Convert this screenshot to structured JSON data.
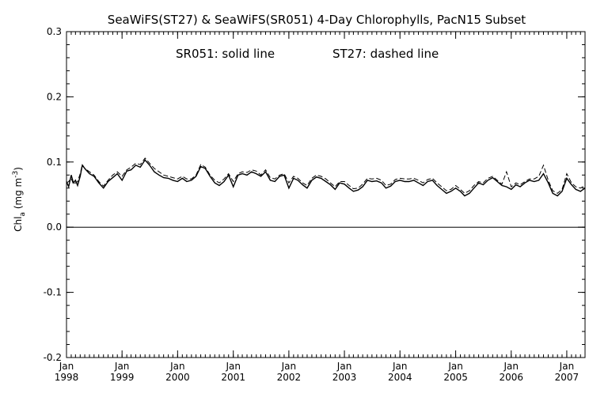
{
  "chart_data": {
    "type": "line",
    "title": "SeaWiFS(ST27) & SeaWiFS(SR051) 4-Day Chlorophylls, PacN15 Subset",
    "annotation_left": "SR051: solid line",
    "annotation_right": "ST27: dashed line",
    "ylabel": "Chl_a (mg m^-3)",
    "ylabel_parts": {
      "base": "Chl",
      "sub": "a",
      "mid": " (mg m",
      "sup": "-3",
      "end": ")"
    },
    "ylim": [
      -0.2,
      0.3
    ],
    "xlim": [
      "1998-01-01",
      "2007-05-01"
    ],
    "yticks": [
      "-0.2",
      "-0.1",
      "0.0",
      "0.1",
      "0.2",
      "0.3"
    ],
    "yticks_values": [
      -0.2,
      -0.1,
      0.0,
      0.1,
      0.2,
      0.3
    ],
    "xticks": [
      {
        "month": "Jan",
        "year": "1998",
        "date": "1998-01-01"
      },
      {
        "month": "Jan",
        "year": "1999",
        "date": "1999-01-01"
      },
      {
        "month": "Jan",
        "year": "2000",
        "date": "2000-01-01"
      },
      {
        "month": "Jan",
        "year": "2001",
        "date": "2001-01-01"
      },
      {
        "month": "Jan",
        "year": "2002",
        "date": "2002-01-01"
      },
      {
        "month": "Jan",
        "year": "2003",
        "date": "2003-01-01"
      },
      {
        "month": "Jan",
        "year": "2004",
        "date": "2004-01-01"
      },
      {
        "month": "Jan",
        "year": "2005",
        "date": "2005-01-01"
      },
      {
        "month": "Jan",
        "year": "2006",
        "date": "2006-01-01"
      },
      {
        "month": "Jan",
        "year": "2007",
        "date": "2007-01-01"
      }
    ],
    "zero_line": 0.0,
    "series": [
      {
        "name": "SR051",
        "style": "solid",
        "color": "#000000",
        "points": [
          [
            "1998-01-01",
            0.07
          ],
          [
            "1998-01-15",
            0.062
          ],
          [
            "1998-02-01",
            0.08
          ],
          [
            "1998-02-15",
            0.068
          ],
          [
            "1998-03-01",
            0.072
          ],
          [
            "1998-03-15",
            0.064
          ],
          [
            "1998-04-01",
            0.078
          ],
          [
            "1998-04-15",
            0.095
          ],
          [
            "1998-05-01",
            0.09
          ],
          [
            "1998-06-01",
            0.082
          ],
          [
            "1998-07-01",
            0.078
          ],
          [
            "1998-08-01",
            0.068
          ],
          [
            "1998-09-01",
            0.06
          ],
          [
            "1998-10-01",
            0.07
          ],
          [
            "1998-11-01",
            0.076
          ],
          [
            "1998-12-01",
            0.082
          ],
          [
            "1999-01-01",
            0.072
          ],
          [
            "1999-02-01",
            0.086
          ],
          [
            "1999-03-01",
            0.088
          ],
          [
            "1999-04-01",
            0.095
          ],
          [
            "1999-05-01",
            0.092
          ],
          [
            "1999-06-01",
            0.103
          ],
          [
            "1999-07-01",
            0.095
          ],
          [
            "1999-08-01",
            0.085
          ],
          [
            "1999-09-01",
            0.08
          ],
          [
            "1999-10-01",
            0.076
          ],
          [
            "1999-11-01",
            0.075
          ],
          [
            "1999-12-01",
            0.072
          ],
          [
            "2000-01-01",
            0.07
          ],
          [
            "2000-02-01",
            0.075
          ],
          [
            "2000-03-01",
            0.07
          ],
          [
            "2000-04-01",
            0.072
          ],
          [
            "2000-05-01",
            0.078
          ],
          [
            "2000-06-01",
            0.093
          ],
          [
            "2000-07-01",
            0.09
          ],
          [
            "2000-08-01",
            0.078
          ],
          [
            "2000-09-01",
            0.068
          ],
          [
            "2000-10-01",
            0.064
          ],
          [
            "2000-11-01",
            0.07
          ],
          [
            "2000-12-01",
            0.08
          ],
          [
            "2001-01-01",
            0.062
          ],
          [
            "2001-02-01",
            0.08
          ],
          [
            "2001-03-01",
            0.082
          ],
          [
            "2001-04-01",
            0.08
          ],
          [
            "2001-05-01",
            0.085
          ],
          [
            "2001-06-01",
            0.082
          ],
          [
            "2001-07-01",
            0.078
          ],
          [
            "2001-08-01",
            0.085
          ],
          [
            "2001-09-01",
            0.072
          ],
          [
            "2001-10-01",
            0.07
          ],
          [
            "2001-11-01",
            0.078
          ],
          [
            "2001-12-01",
            0.08
          ],
          [
            "2002-01-01",
            0.06
          ],
          [
            "2002-02-01",
            0.075
          ],
          [
            "2002-03-01",
            0.072
          ],
          [
            "2002-04-01",
            0.065
          ],
          [
            "2002-05-01",
            0.06
          ],
          [
            "2002-06-01",
            0.072
          ],
          [
            "2002-07-01",
            0.077
          ],
          [
            "2002-08-01",
            0.075
          ],
          [
            "2002-09-01",
            0.07
          ],
          [
            "2002-10-01",
            0.065
          ],
          [
            "2002-11-01",
            0.058
          ],
          [
            "2002-12-01",
            0.068
          ],
          [
            "2003-01-01",
            0.066
          ],
          [
            "2003-02-01",
            0.06
          ],
          [
            "2003-03-01",
            0.055
          ],
          [
            "2003-04-01",
            0.057
          ],
          [
            "2003-05-01",
            0.062
          ],
          [
            "2003-06-01",
            0.072
          ],
          [
            "2003-07-01",
            0.07
          ],
          [
            "2003-08-01",
            0.071
          ],
          [
            "2003-09-01",
            0.068
          ],
          [
            "2003-10-01",
            0.06
          ],
          [
            "2003-11-01",
            0.063
          ],
          [
            "2003-12-01",
            0.07
          ],
          [
            "2004-01-01",
            0.072
          ],
          [
            "2004-02-01",
            0.07
          ],
          [
            "2004-03-01",
            0.07
          ],
          [
            "2004-04-01",
            0.072
          ],
          [
            "2004-05-01",
            0.068
          ],
          [
            "2004-06-01",
            0.064
          ],
          [
            "2004-07-01",
            0.07
          ],
          [
            "2004-08-01",
            0.072
          ],
          [
            "2004-09-01",
            0.064
          ],
          [
            "2004-10-01",
            0.058
          ],
          [
            "2004-11-01",
            0.052
          ],
          [
            "2004-12-01",
            0.055
          ],
          [
            "2005-01-01",
            0.06
          ],
          [
            "2005-02-01",
            0.055
          ],
          [
            "2005-03-01",
            0.048
          ],
          [
            "2005-04-01",
            0.052
          ],
          [
            "2005-05-01",
            0.06
          ],
          [
            "2005-06-01",
            0.068
          ],
          [
            "2005-07-01",
            0.065
          ],
          [
            "2005-08-01",
            0.072
          ],
          [
            "2005-09-01",
            0.076
          ],
          [
            "2005-10-01",
            0.07
          ],
          [
            "2005-11-01",
            0.064
          ],
          [
            "2005-12-01",
            0.062
          ],
          [
            "2006-01-01",
            0.058
          ],
          [
            "2006-02-01",
            0.065
          ],
          [
            "2006-03-01",
            0.062
          ],
          [
            "2006-04-01",
            0.068
          ],
          [
            "2006-05-01",
            0.072
          ],
          [
            "2006-06-01",
            0.07
          ],
          [
            "2006-07-01",
            0.072
          ],
          [
            "2006-08-01",
            0.082
          ],
          [
            "2006-09-01",
            0.068
          ],
          [
            "2006-10-01",
            0.052
          ],
          [
            "2006-11-01",
            0.048
          ],
          [
            "2006-12-01",
            0.055
          ],
          [
            "2007-01-01",
            0.075
          ],
          [
            "2007-02-01",
            0.065
          ],
          [
            "2007-03-01",
            0.058
          ],
          [
            "2007-04-01",
            0.055
          ],
          [
            "2007-05-01",
            0.06
          ]
        ]
      },
      {
        "name": "ST27",
        "style": "dashed",
        "color": "#000000",
        "points": [
          [
            "1998-01-01",
            0.068
          ],
          [
            "1998-01-15",
            0.07
          ],
          [
            "1998-02-01",
            0.075
          ],
          [
            "1998-02-15",
            0.066
          ],
          [
            "1998-03-01",
            0.068
          ],
          [
            "1998-03-15",
            0.07
          ],
          [
            "1998-04-01",
            0.082
          ],
          [
            "1998-04-15",
            0.096
          ],
          [
            "1998-05-01",
            0.09
          ],
          [
            "1998-06-01",
            0.085
          ],
          [
            "1998-07-01",
            0.08
          ],
          [
            "1998-08-01",
            0.07
          ],
          [
            "1998-09-01",
            0.063
          ],
          [
            "1998-10-01",
            0.072
          ],
          [
            "1998-11-01",
            0.08
          ],
          [
            "1998-12-01",
            0.085
          ],
          [
            "1999-01-01",
            0.078
          ],
          [
            "1999-02-01",
            0.088
          ],
          [
            "1999-03-01",
            0.092
          ],
          [
            "1999-04-01",
            0.098
          ],
          [
            "1999-05-01",
            0.096
          ],
          [
            "1999-06-01",
            0.106
          ],
          [
            "1999-07-01",
            0.098
          ],
          [
            "1999-08-01",
            0.09
          ],
          [
            "1999-09-01",
            0.085
          ],
          [
            "1999-10-01",
            0.08
          ],
          [
            "1999-11-01",
            0.078
          ],
          [
            "1999-12-01",
            0.076
          ],
          [
            "2000-01-01",
            0.074
          ],
          [
            "2000-02-01",
            0.078
          ],
          [
            "2000-03-01",
            0.074
          ],
          [
            "2000-04-01",
            0.074
          ],
          [
            "2000-05-01",
            0.08
          ],
          [
            "2000-06-01",
            0.096
          ],
          [
            "2000-07-01",
            0.092
          ],
          [
            "2000-08-01",
            0.08
          ],
          [
            "2000-09-01",
            0.072
          ],
          [
            "2000-10-01",
            0.068
          ],
          [
            "2000-11-01",
            0.074
          ],
          [
            "2000-12-01",
            0.082
          ],
          [
            "2001-01-01",
            0.07
          ],
          [
            "2001-02-01",
            0.082
          ],
          [
            "2001-03-01",
            0.085
          ],
          [
            "2001-04-01",
            0.084
          ],
          [
            "2001-05-01",
            0.088
          ],
          [
            "2001-06-01",
            0.086
          ],
          [
            "2001-07-01",
            0.08
          ],
          [
            "2001-08-01",
            0.088
          ],
          [
            "2001-09-01",
            0.076
          ],
          [
            "2001-10-01",
            0.074
          ],
          [
            "2001-11-01",
            0.08
          ],
          [
            "2001-12-01",
            0.082
          ],
          [
            "2002-01-01",
            0.068
          ],
          [
            "2002-02-01",
            0.078
          ],
          [
            "2002-03-01",
            0.075
          ],
          [
            "2002-04-01",
            0.068
          ],
          [
            "2002-05-01",
            0.064
          ],
          [
            "2002-06-01",
            0.075
          ],
          [
            "2002-07-01",
            0.08
          ],
          [
            "2002-08-01",
            0.078
          ],
          [
            "2002-09-01",
            0.074
          ],
          [
            "2002-10-01",
            0.068
          ],
          [
            "2002-11-01",
            0.062
          ],
          [
            "2002-12-01",
            0.07
          ],
          [
            "2003-01-01",
            0.07
          ],
          [
            "2003-02-01",
            0.064
          ],
          [
            "2003-03-01",
            0.059
          ],
          [
            "2003-04-01",
            0.06
          ],
          [
            "2003-05-01",
            0.066
          ],
          [
            "2003-06-01",
            0.075
          ],
          [
            "2003-07-01",
            0.074
          ],
          [
            "2003-08-01",
            0.075
          ],
          [
            "2003-09-01",
            0.072
          ],
          [
            "2003-10-01",
            0.064
          ],
          [
            "2003-11-01",
            0.066
          ],
          [
            "2003-12-01",
            0.073
          ],
          [
            "2004-01-01",
            0.075
          ],
          [
            "2004-02-01",
            0.074
          ],
          [
            "2004-03-01",
            0.074
          ],
          [
            "2004-04-01",
            0.075
          ],
          [
            "2004-05-01",
            0.072
          ],
          [
            "2004-06-01",
            0.068
          ],
          [
            "2004-07-01",
            0.073
          ],
          [
            "2004-08-01",
            0.075
          ],
          [
            "2004-09-01",
            0.068
          ],
          [
            "2004-10-01",
            0.062
          ],
          [
            "2004-11-01",
            0.056
          ],
          [
            "2004-12-01",
            0.058
          ],
          [
            "2005-01-01",
            0.064
          ],
          [
            "2005-02-01",
            0.058
          ],
          [
            "2005-03-01",
            0.052
          ],
          [
            "2005-04-01",
            0.056
          ],
          [
            "2005-05-01",
            0.064
          ],
          [
            "2005-06-01",
            0.07
          ],
          [
            "2005-07-01",
            0.068
          ],
          [
            "2005-08-01",
            0.075
          ],
          [
            "2005-09-01",
            0.078
          ],
          [
            "2005-10-01",
            0.072
          ],
          [
            "2005-11-01",
            0.066
          ],
          [
            "2005-12-01",
            0.085
          ],
          [
            "2006-01-01",
            0.062
          ],
          [
            "2006-02-01",
            0.068
          ],
          [
            "2006-03-01",
            0.065
          ],
          [
            "2006-04-01",
            0.07
          ],
          [
            "2006-05-01",
            0.074
          ],
          [
            "2006-06-01",
            0.074
          ],
          [
            "2006-07-01",
            0.078
          ],
          [
            "2006-08-01",
            0.095
          ],
          [
            "2006-09-01",
            0.072
          ],
          [
            "2006-10-01",
            0.056
          ],
          [
            "2006-11-01",
            0.052
          ],
          [
            "2006-12-01",
            0.058
          ],
          [
            "2007-01-01",
            0.082
          ],
          [
            "2007-02-01",
            0.068
          ],
          [
            "2007-03-01",
            0.062
          ],
          [
            "2007-04-01",
            0.06
          ],
          [
            "2007-05-01",
            0.064
          ]
        ]
      }
    ]
  }
}
